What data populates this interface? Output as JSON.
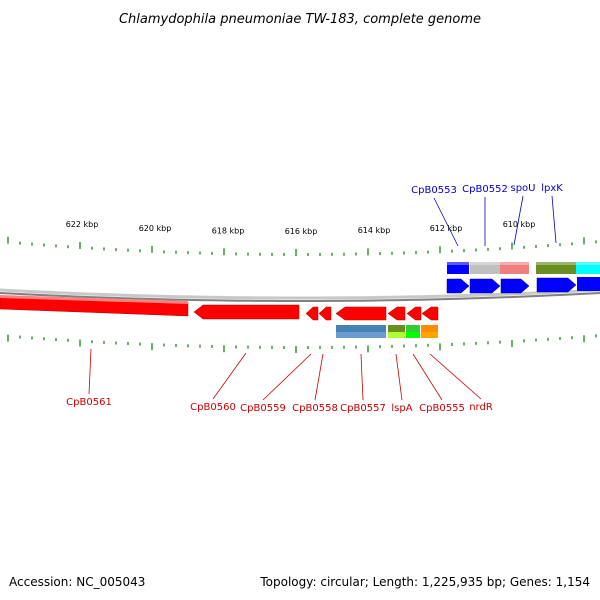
{
  "title": "Chlamydophila pneumoniae TW-183, complete genome",
  "footer": {
    "accession": "Accession: NC_005043",
    "summary": "Topology: circular; Length: 1,225,935 bp; Genes: 1,154"
  },
  "colors": {
    "reverse_genes": "#ff0000",
    "forward_genes": "#0000ff",
    "reverse_label": "#cc0000",
    "forward_label": "#0000cc",
    "tick": "#008000",
    "backbone": "#808080"
  },
  "scale": {
    "unit": "kbp",
    "ticks": [
      "622 kbp",
      "620 kbp",
      "618 kbp",
      "616 kbp",
      "614 kbp",
      "612 kbp",
      "610 kbp"
    ]
  },
  "forward_genes": [
    {
      "label": "CpB0553",
      "features": [
        "blue"
      ]
    },
    {
      "label": "CpB0552",
      "features": [
        "silver"
      ]
    },
    {
      "label": "spoU",
      "features": [
        "salmon"
      ]
    },
    {
      "label": "lpxK",
      "features": [
        "olive",
        "cyan"
      ]
    }
  ],
  "reverse_genes": [
    {
      "label": "CpB0561"
    },
    {
      "label": "CpB0560"
    },
    {
      "label": "CpB0559"
    },
    {
      "label": "CpB0558"
    },
    {
      "label": "CpB0557"
    },
    {
      "label": "lspA"
    },
    {
      "label": "CpB0555"
    },
    {
      "label": "nrdR"
    }
  ]
}
